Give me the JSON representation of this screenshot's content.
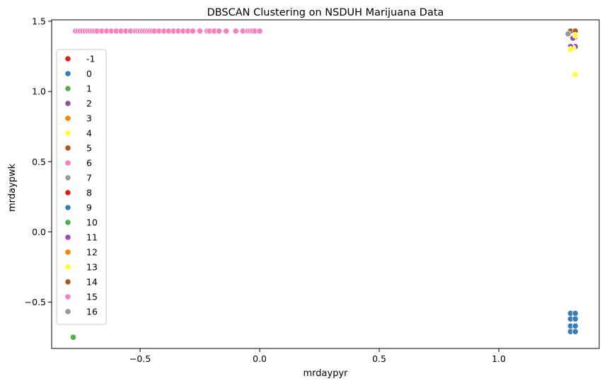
{
  "chart_data": {
    "type": "scatter",
    "title": "DBSCAN Clustering on NSDUH Marijuana Data",
    "xlabel": "mrdaypyr",
    "ylabel": "mrdaypwk",
    "xlim": [
      -0.87,
      1.42
    ],
    "ylim": [
      -0.83,
      1.51
    ],
    "x_ticks": [
      -0.5,
      0.0,
      0.5,
      1.0
    ],
    "x_tick_labels": [
      "−0.5",
      "0.0",
      "0.5",
      "1.0"
    ],
    "y_ticks": [
      -0.5,
      0.0,
      0.5,
      1.0,
      1.5
    ],
    "y_tick_labels": [
      "−0.5",
      "0.0",
      "0.5",
      "1.0",
      "1.5"
    ],
    "grid": false,
    "legend_position": "upper-left",
    "series": [
      {
        "name": "-1",
        "color": "#e41a1c",
        "points": []
      },
      {
        "name": "0",
        "color": "#377eb8",
        "points": [
          [
            1.3,
            -0.58
          ],
          [
            1.32,
            -0.58
          ],
          [
            1.3,
            -0.62
          ],
          [
            1.32,
            -0.62
          ],
          [
            1.3,
            -0.67
          ],
          [
            1.32,
            -0.67
          ],
          [
            1.3,
            -0.71
          ],
          [
            1.32,
            -0.71
          ]
        ]
      },
      {
        "name": "1",
        "color": "#4daf4a",
        "points": [
          [
            -0.78,
            -0.75
          ]
        ]
      },
      {
        "name": "2",
        "color": "#984ea3",
        "points": [
          [
            1.32,
            1.39
          ],
          [
            1.32,
            1.32
          ]
        ]
      },
      {
        "name": "3",
        "color": "#ff7f00",
        "points": []
      },
      {
        "name": "4",
        "color": "#ffff33",
        "points": [
          [
            1.31,
            1.31
          ],
          [
            1.32,
            1.12
          ]
        ]
      },
      {
        "name": "5",
        "color": "#a65628",
        "points": [
          [
            1.3,
            1.43
          ],
          [
            1.32,
            1.43
          ]
        ]
      },
      {
        "name": "6",
        "color": "#f781bf",
        "points": [
          [
            -0.77,
            1.43
          ],
          [
            -0.76,
            1.43
          ],
          [
            -0.75,
            1.43
          ],
          [
            -0.74,
            1.43
          ],
          [
            -0.73,
            1.43
          ],
          [
            -0.72,
            1.43
          ],
          [
            -0.71,
            1.43
          ],
          [
            -0.7,
            1.43
          ],
          [
            -0.69,
            1.43
          ],
          [
            -0.68,
            1.43
          ],
          [
            -0.66,
            1.43
          ],
          [
            -0.64,
            1.43
          ],
          [
            -0.62,
            1.43
          ],
          [
            -0.6,
            1.43
          ],
          [
            -0.58,
            1.43
          ],
          [
            -0.56,
            1.43
          ],
          [
            -0.54,
            1.43
          ],
          [
            -0.52,
            1.43
          ],
          [
            -0.51,
            1.43
          ],
          [
            -0.5,
            1.43
          ],
          [
            -0.49,
            1.43
          ],
          [
            -0.48,
            1.43
          ],
          [
            -0.47,
            1.43
          ],
          [
            -0.46,
            1.43
          ],
          [
            -0.45,
            1.43
          ],
          [
            -0.44,
            1.43
          ],
          [
            -0.42,
            1.43
          ],
          [
            -0.4,
            1.43
          ],
          [
            -0.38,
            1.43
          ],
          [
            -0.36,
            1.43
          ],
          [
            -0.34,
            1.43
          ],
          [
            -0.32,
            1.43
          ],
          [
            -0.3,
            1.43
          ],
          [
            -0.28,
            1.43
          ],
          [
            -0.25,
            1.43
          ],
          [
            -0.22,
            1.43
          ],
          [
            -0.21,
            1.43
          ],
          [
            -0.19,
            1.43
          ],
          [
            -0.17,
            1.43
          ],
          [
            -0.14,
            1.43
          ],
          [
            -0.1,
            1.43
          ],
          [
            -0.07,
            1.43
          ],
          [
            -0.05,
            1.43
          ],
          [
            -0.04,
            1.43
          ],
          [
            -0.03,
            1.43
          ],
          [
            -0.02,
            1.43
          ],
          [
            0.0,
            1.43
          ]
        ]
      },
      {
        "name": "7",
        "color": "#999999",
        "points": [
          [
            1.29,
            1.41
          ]
        ]
      },
      {
        "name": "8",
        "color": "#e41a1c",
        "points": []
      },
      {
        "name": "9",
        "color": "#377eb8",
        "points": []
      },
      {
        "name": "10",
        "color": "#4daf4a",
        "points": []
      },
      {
        "name": "11",
        "color": "#984ea3",
        "points": [
          [
            1.3,
            1.32
          ],
          [
            1.31,
            1.38
          ]
        ]
      },
      {
        "name": "12",
        "color": "#ff7f00",
        "points": []
      },
      {
        "name": "13",
        "color": "#ffff33",
        "points": [
          [
            1.3,
            1.3
          ],
          [
            1.32,
            1.4
          ]
        ]
      },
      {
        "name": "14",
        "color": "#a65628",
        "points": []
      },
      {
        "name": "15",
        "color": "#f781bf",
        "points": []
      },
      {
        "name": "16",
        "color": "#999999",
        "points": []
      }
    ]
  }
}
